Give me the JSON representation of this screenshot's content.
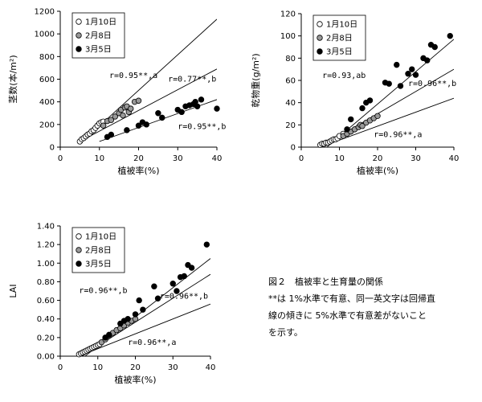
{
  "chart_data": [
    {
      "type": "scatter",
      "ylabel": "茎数(本/m²)",
      "xlabel": "植被率(%)",
      "xlim": [
        0,
        40
      ],
      "ylim": [
        0,
        1200
      ],
      "xticks": [
        "0",
        "10",
        "20",
        "30",
        "40"
      ],
      "yticks": [
        "0",
        "200",
        "400",
        "600",
        "800",
        "1000",
        "1200"
      ],
      "legend_position": "top-left",
      "series": [
        {
          "name": "1月10日",
          "marker": "open-circle",
          "color": "#ffffff",
          "x": [
            5,
            5.5,
            6,
            6.5,
            7,
            7.5,
            8,
            8.5,
            9,
            9.5,
            10,
            10.5,
            11
          ],
          "y": [
            50,
            70,
            80,
            95,
            110,
            120,
            140,
            150,
            170,
            190,
            210,
            220,
            225
          ]
        },
        {
          "name": "2月8日",
          "marker": "gray-circle",
          "color": "#999999",
          "x": [
            11,
            12,
            13,
            14,
            15,
            15.5,
            16,
            16.5,
            17,
            17.5,
            18,
            19,
            20
          ],
          "y": [
            190,
            230,
            240,
            270,
            300,
            330,
            280,
            350,
            360,
            310,
            340,
            400,
            410
          ]
        },
        {
          "name": "3月5日",
          "marker": "black-circle",
          "color": "#000000",
          "x": [
            12,
            13,
            17,
            20,
            21,
            22,
            25,
            26,
            30,
            31,
            32,
            33,
            34,
            34.5,
            35,
            36,
            40
          ],
          "y": [
            90,
            110,
            150,
            190,
            220,
            200,
            300,
            260,
            330,
            310,
            360,
            370,
            380,
            400,
            360,
            420,
            340
          ]
        }
      ],
      "regression_lines": [
        {
          "x": [
            5,
            40
          ],
          "y": [
            30,
            1130
          ]
        },
        {
          "x": [
            5,
            40
          ],
          "y": [
            50,
            690
          ]
        },
        {
          "x": [
            10,
            40
          ],
          "y": [
            50,
            420
          ]
        }
      ],
      "annotations": [
        {
          "text": "r=0.95**,a",
          "x": 12.5,
          "y": 610
        },
        {
          "text": "r=0.77**,b",
          "x": 27.5,
          "y": 580
        },
        {
          "text": "r=0.95**,b",
          "x": 30,
          "y": 160
        }
      ]
    },
    {
      "type": "scatter",
      "ylabel": "乾物重(g/m²)",
      "xlabel": "植被率(%)",
      "xlim": [
        0,
        40
      ],
      "ylim": [
        0,
        120
      ],
      "xticks": [
        "0",
        "10",
        "20",
        "30",
        "40"
      ],
      "yticks": [
        "0",
        "20",
        "40",
        "60",
        "80",
        "100",
        "120"
      ],
      "legend_position": "top-left",
      "series": [
        {
          "name": "1月10日",
          "marker": "open-circle",
          "color": "#ffffff",
          "x": [
            5,
            5.5,
            6,
            6.5,
            7,
            7.5,
            8,
            8.5,
            9,
            9.5,
            10,
            11
          ],
          "y": [
            2,
            3,
            3,
            4,
            4,
            5,
            6,
            7,
            7,
            8,
            10,
            12
          ]
        },
        {
          "name": "2月8日",
          "marker": "gray-circle",
          "color": "#999999",
          "x": [
            11,
            12,
            13,
            14,
            15,
            15.5,
            16,
            17,
            18,
            19,
            20
          ],
          "y": [
            10,
            12,
            14,
            16,
            18,
            20,
            19,
            22,
            24,
            26,
            28
          ]
        },
        {
          "name": "3月5日",
          "marker": "black-circle",
          "color": "#000000",
          "x": [
            12,
            13,
            16,
            17,
            18,
            22,
            23,
            25,
            26,
            28,
            29,
            30,
            32,
            33,
            34,
            35,
            39
          ],
          "y": [
            16,
            25,
            35,
            40,
            42,
            58,
            57,
            74,
            55,
            66,
            70,
            65,
            80,
            78,
            92,
            90,
            100
          ]
        }
      ],
      "regression_lines": [
        {
          "x": [
            5,
            40
          ],
          "y": [
            -5,
            97
          ]
        },
        {
          "x": [
            5,
            40
          ],
          "y": [
            0,
            70
          ]
        },
        {
          "x": [
            5,
            40
          ],
          "y": [
            0,
            44
          ]
        }
      ],
      "annotations": [
        {
          "text": "r=0.93,ab",
          "x": 5.5,
          "y": 62
        },
        {
          "text": "r=0.96**,b",
          "x": 28,
          "y": 55
        },
        {
          "text": "r=0.96**,a",
          "x": 19,
          "y": 9
        }
      ]
    },
    {
      "type": "scatter",
      "ylabel": "LAI",
      "xlabel": "植被率(%)",
      "xlim": [
        0,
        40
      ],
      "ylim": [
        0,
        1.4
      ],
      "xticks": [
        "0",
        "10",
        "20",
        "30",
        "40"
      ],
      "yticks": [
        "0.00",
        "0.20",
        "0.40",
        "0.60",
        "0.80",
        "1.00",
        "1.20",
        "1.40"
      ],
      "legend_position": "top-left",
      "series": [
        {
          "name": "1月10日",
          "marker": "open-circle",
          "color": "#ffffff",
          "x": [
            5,
            5.5,
            6,
            6.5,
            7,
            7.5,
            8,
            8.5,
            9,
            9.5,
            10,
            10.5
          ],
          "y": [
            0.02,
            0.03,
            0.04,
            0.05,
            0.06,
            0.07,
            0.08,
            0.09,
            0.1,
            0.11,
            0.12,
            0.13
          ]
        },
        {
          "name": "2月8日",
          "marker": "gray-circle",
          "color": "#999999",
          "x": [
            11,
            12,
            13,
            14,
            15,
            16,
            17,
            18,
            19,
            20
          ],
          "y": [
            0.15,
            0.18,
            0.22,
            0.25,
            0.28,
            0.3,
            0.33,
            0.36,
            0.38,
            0.4
          ]
        },
        {
          "name": "3月5日",
          "marker": "black-circle",
          "color": "#000000",
          "x": [
            12,
            13,
            16,
            17,
            18,
            20,
            21,
            22,
            25,
            26,
            30,
            31,
            32,
            33,
            34,
            35,
            39
          ],
          "y": [
            0.2,
            0.23,
            0.35,
            0.38,
            0.4,
            0.45,
            0.6,
            0.5,
            0.75,
            0.62,
            0.78,
            0.7,
            0.85,
            0.86,
            0.98,
            0.95,
            1.2
          ]
        }
      ],
      "regression_lines": [
        {
          "x": [
            5,
            40
          ],
          "y": [
            -0.05,
            1.05
          ]
        },
        {
          "x": [
            5,
            40
          ],
          "y": [
            -0.02,
            0.88
          ]
        },
        {
          "x": [
            5,
            40
          ],
          "y": [
            0,
            0.56
          ]
        }
      ],
      "annotations": [
        {
          "text": "r=0.96**,b",
          "x": 5,
          "y": 0.68
        },
        {
          "text": "r=0.96**,b",
          "x": 26.5,
          "y": 0.62
        },
        {
          "text": "r=0.96**,a",
          "x": 18,
          "y": 0.12
        }
      ]
    }
  ],
  "caption": {
    "title": "図２　植被率と生育量の関係",
    "lines": [
      "**は 1%水準で有意、同一英文字は回帰直",
      "線の傾きに 5%水準で有意差がないこと",
      "を示す。"
    ]
  }
}
